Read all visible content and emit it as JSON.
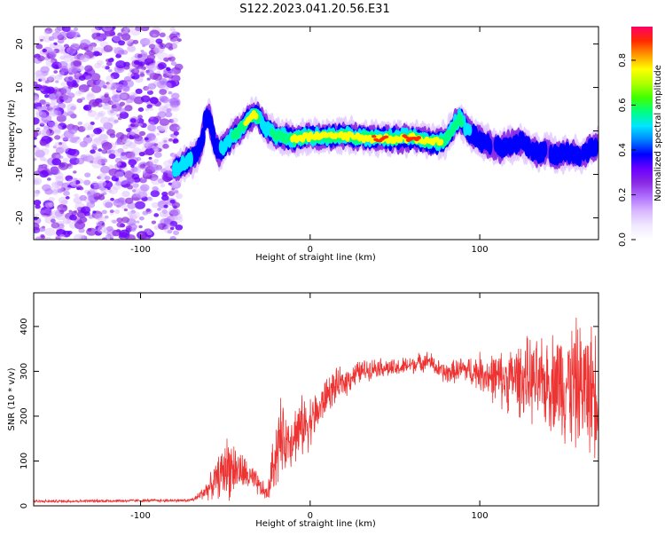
{
  "title": "S122.2023.041.20.56.E31",
  "colors": {
    "snr_line": "#ee3333",
    "colormap": [
      "#ffffff",
      "#f0e8ff",
      "#d9b8ff",
      "#b070ff",
      "#8a2be2",
      "#6a00ff",
      "#0000ff",
      "#0080ff",
      "#00e5ff",
      "#00ff80",
      "#40ff00",
      "#b0ff00",
      "#ffff00",
      "#ff9900",
      "#ff2a00",
      "#ff0066"
    ]
  },
  "chart_data": [
    {
      "type": "heatmap",
      "title": "S122.2023.041.20.56.E31",
      "xlabel": "Height of straight line (km)",
      "ylabel": "Frequency (Hz)",
      "xlim": [
        -163,
        170
      ],
      "ylim": [
        -25,
        24
      ],
      "xticks": [
        -100,
        0,
        100
      ],
      "yticks": [
        -20,
        -10,
        0,
        10,
        20
      ],
      "colorbar": {
        "label": "Normalized spectral amplitude",
        "range": [
          0,
          0.95
        ],
        "ticks": [
          0,
          0.2,
          0.4,
          0.6,
          0.8
        ]
      },
      "noise_region_x": [
        -163,
        -77
      ],
      "ridge": {
        "x": [
          -80,
          -76,
          -72,
          -68,
          -64,
          -62,
          -60,
          -57,
          -54,
          -50,
          -45,
          -40,
          -36,
          -33,
          -30,
          -27,
          -24,
          -20,
          -15,
          -10,
          -5,
          0,
          10,
          20,
          30,
          40,
          50,
          60,
          70,
          75,
          80,
          83,
          86,
          88,
          90,
          93,
          96,
          100,
          104,
          108,
          112,
          116,
          120,
          125,
          130,
          135,
          140,
          145,
          150,
          155,
          160,
          165,
          170
        ],
        "y": [
          -9,
          -8,
          -7,
          -6,
          -3,
          2,
          4,
          -2,
          -5,
          -3,
          -1,
          1,
          3,
          4,
          3,
          1,
          0,
          -1,
          -1.5,
          -2,
          -1.5,
          -1.3,
          -1.4,
          -1,
          -1.5,
          -1.8,
          -1.7,
          -1.5,
          -2.3,
          -2.5,
          -2,
          0,
          2,
          3,
          2,
          0,
          -1,
          -2,
          -2.5,
          -3.5,
          -4,
          -3,
          -3,
          -2.5,
          -4,
          -5,
          -4.5,
          -6,
          -5,
          -5.5,
          -6,
          -4,
          -3
        ],
        "amplitude": [
          0.5,
          0.55,
          0.5,
          0.45,
          0.4,
          0.4,
          0.45,
          0.4,
          0.45,
          0.55,
          0.6,
          0.7,
          0.85,
          0.85,
          0.6,
          0.5,
          0.55,
          0.65,
          0.7,
          0.75,
          0.75,
          0.8,
          0.85,
          0.85,
          0.8,
          0.9,
          0.85,
          0.9,
          0.85,
          0.8,
          0.7,
          0.6,
          0.6,
          0.65,
          0.6,
          0.5,
          0.45,
          0.45,
          0.4,
          0.35,
          0.4,
          0.45,
          0.4,
          0.4,
          0.35,
          0.45,
          0.35,
          0.4,
          0.45,
          0.4,
          0.35,
          0.4,
          0.35
        ]
      }
    },
    {
      "type": "line",
      "xlabel": "Height of straight line (km)",
      "ylabel": "SNR (10 * v/v)",
      "xlim": [
        -163,
        170
      ],
      "ylim": [
        0,
        475
      ],
      "xticks": [
        -100,
        0,
        100
      ],
      "yticks": [
        0,
        100,
        200,
        300,
        400
      ],
      "envelope": {
        "x": [
          -163,
          -80,
          -72,
          -68,
          -63,
          -58,
          -53,
          -48,
          -43,
          -38,
          -33,
          -28,
          -25,
          -22,
          -18,
          -15,
          -10,
          -5,
          0,
          5,
          10,
          15,
          20,
          25,
          30,
          40,
          50,
          60,
          65,
          70,
          75,
          80,
          85,
          90,
          95,
          100,
          105,
          110,
          115,
          120,
          125,
          130,
          135,
          140,
          145,
          150,
          155,
          160,
          165,
          170
        ],
        "center": [
          10,
          12,
          12,
          15,
          30,
          45,
          70,
          90,
          80,
          70,
          55,
          35,
          25,
          90,
          150,
          140,
          160,
          175,
          190,
          210,
          250,
          265,
          275,
          290,
          300,
          310,
          305,
          315,
          320,
          325,
          305,
          295,
          300,
          305,
          300,
          300,
          290,
          285,
          280,
          285,
          285,
          280,
          270,
          275,
          280,
          275,
          270,
          265,
          260,
          265
        ],
        "spread": [
          4,
          4,
          4,
          6,
          20,
          35,
          60,
          90,
          60,
          45,
          35,
          25,
          20,
          70,
          120,
          70,
          80,
          80,
          70,
          55,
          50,
          45,
          40,
          35,
          30,
          25,
          25,
          25,
          25,
          25,
          25,
          30,
          30,
          35,
          40,
          50,
          60,
          70,
          80,
          90,
          100,
          110,
          110,
          120,
          140,
          160,
          170,
          170,
          170,
          170
        ]
      }
    }
  ]
}
